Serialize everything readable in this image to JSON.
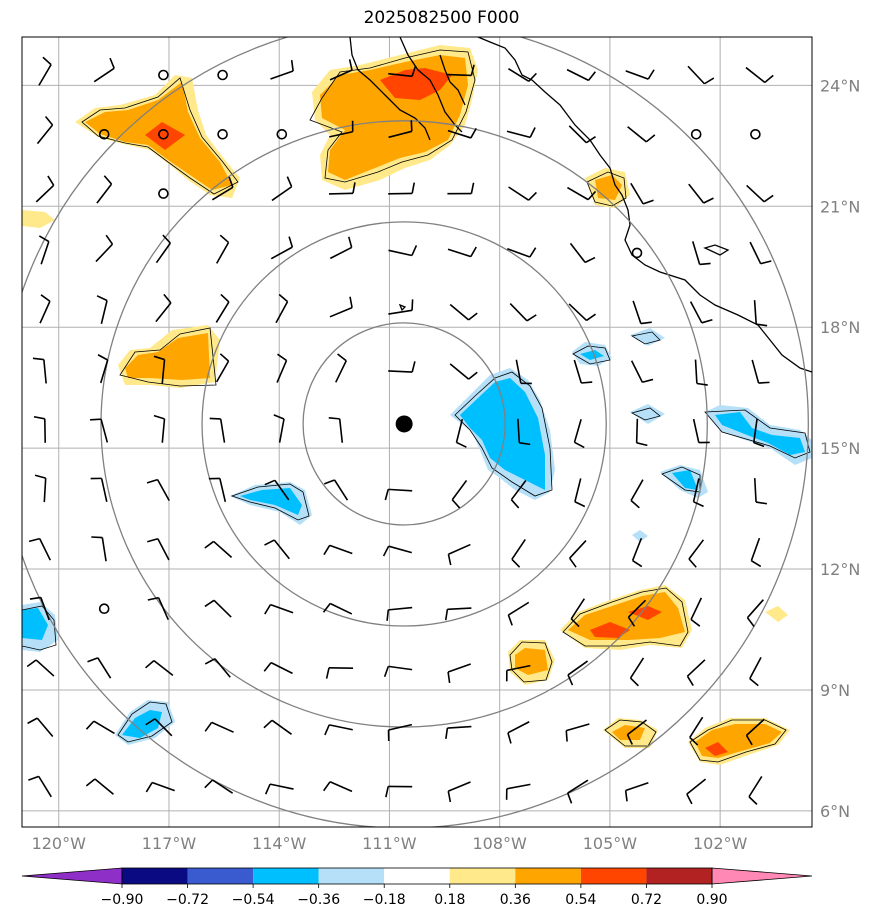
{
  "title": "2025082500 F000",
  "map": {
    "lon_range": [
      -121.0,
      -99.5
    ],
    "lat_range": [
      5.6,
      25.2
    ],
    "lon_ticks": [
      "120°W",
      "117°W",
      "114°W",
      "111°W",
      "108°W",
      "105°W",
      "102°W"
    ],
    "lat_ticks": [
      "24°N",
      "21°N",
      "18°N",
      "15°N",
      "12°N",
      "9°N",
      "6°N"
    ],
    "center_marker": {
      "lon": -110.6,
      "lat": 15.6
    },
    "range_rings": 4,
    "gridlines": true,
    "coastline_color": "#000000",
    "ring_color": "#808080",
    "grid_color": "#b0b0b0"
  },
  "colorbar": {
    "tick_labels": [
      "−0.90",
      "−0.72",
      "−0.54",
      "−0.36",
      "−0.18",
      "0.18",
      "0.36",
      "0.54",
      "0.72",
      "0.90"
    ],
    "colors": [
      "#8e2fc7",
      "#0a0a82",
      "#3a5ad0",
      "#00bfff",
      "#b5e0f8",
      "#ffffff",
      "#ffe98a",
      "#ffa500",
      "#ff4500",
      "#b22222",
      "#ff88b4"
    ],
    "extend": "both"
  },
  "fill_colors": {
    "light_orange": "#ffe98a",
    "orange": "#ffa500",
    "red_orange": "#ff4500",
    "light_blue": "#b5e0f8",
    "blue": "#00bfff"
  }
}
